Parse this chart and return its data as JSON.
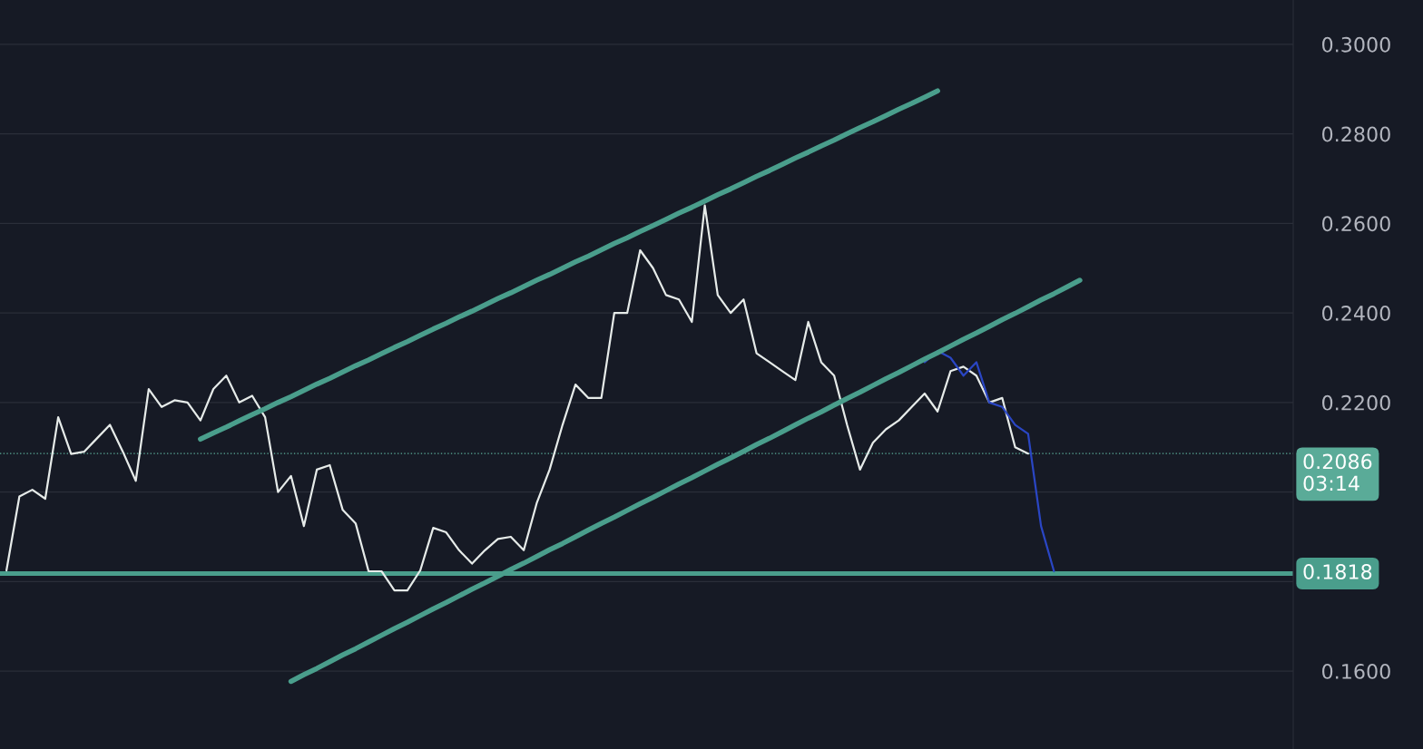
{
  "chart_data": {
    "type": "line",
    "ylim": [
      0.1426,
      0.3099
    ],
    "categories": [
      null,
      null,
      null,
      null,
      null,
      null,
      null,
      null,
      null,
      null,
      null,
      null,
      null,
      null,
      null,
      null,
      null,
      null,
      null,
      null,
      null,
      null,
      null,
      null,
      null,
      null,
      null,
      null,
      null,
      null,
      null,
      null,
      null,
      null,
      null,
      null,
      null,
      null,
      null,
      null,
      null,
      null,
      null,
      null,
      null,
      null,
      null,
      null,
      null,
      null,
      null,
      null,
      null,
      null,
      null,
      null,
      null,
      null,
      null,
      null,
      null,
      null,
      null,
      null,
      null,
      null,
      null,
      null,
      null,
      null,
      null,
      null,
      null,
      null,
      null,
      null,
      null,
      null,
      null,
      null,
      null,
      null,
      null,
      null,
      null,
      null,
      null,
      null,
      null,
      null,
      null,
      null,
      null,
      null,
      null,
      null,
      null,
      null,
      null,
      null
    ],
    "yticks": [
      {
        "value": 0.16,
        "label": "0.1600"
      },
      {
        "value": 0.18,
        "label": null
      },
      {
        "value": 0.2,
        "label": null
      },
      {
        "value": 0.22,
        "label": "0.2200"
      },
      {
        "value": 0.24,
        "label": "0.2400"
      },
      {
        "value": 0.26,
        "label": "0.2600"
      },
      {
        "value": 0.28,
        "label": "0.2800"
      },
      {
        "value": 0.3,
        "label": "0.3000"
      }
    ],
    "tick_labels": "y",
    "grid": "y",
    "marker": "none",
    "line_style": "solid",
    "series": [
      {
        "color": "#e6ebe9",
        "values": [
          0.1825,
          0.199,
          0.2005,
          0.1985,
          0.2167,
          0.2085,
          0.209,
          0.212,
          0.215,
          0.209,
          0.2025,
          0.223,
          0.219,
          0.2205,
          0.22,
          0.216,
          0.223,
          0.226,
          0.22,
          0.2215,
          0.2167,
          0.2,
          0.2036,
          0.1924,
          0.205,
          0.206,
          0.196,
          0.193,
          0.1823,
          0.1823,
          0.178,
          0.178,
          0.1825,
          0.192,
          0.191,
          0.187,
          0.184,
          0.187,
          0.1895,
          0.19,
          0.187,
          0.1975,
          0.205,
          0.215,
          0.224,
          0.221,
          0.221,
          0.24,
          0.24,
          0.254,
          0.25,
          0.244,
          0.243,
          0.238,
          0.264,
          0.244,
          0.24,
          0.243,
          0.231,
          0.229,
          0.227,
          0.225,
          0.238,
          0.229,
          0.226,
          0.215,
          0.205,
          0.211,
          0.214,
          0.216,
          0.219,
          0.222,
          0.218,
          0.227,
          0.228,
          0.226,
          0.22,
          0.221,
          0.21,
          0.2086,
          null,
          null,
          null,
          null,
          null,
          null,
          null,
          null,
          null,
          null,
          null,
          null,
          null,
          null,
          null,
          null,
          null,
          null,
          null,
          null
        ]
      },
      {
        "color": "#2a46c4",
        "values": [
          null,
          null,
          null,
          null,
          null,
          null,
          null,
          null,
          null,
          null,
          null,
          null,
          null,
          null,
          null,
          null,
          null,
          null,
          null,
          null,
          null,
          null,
          null,
          null,
          null,
          null,
          null,
          null,
          null,
          null,
          null,
          null,
          null,
          null,
          null,
          null,
          null,
          null,
          null,
          null,
          null,
          null,
          null,
          null,
          null,
          null,
          null,
          null,
          null,
          null,
          null,
          null,
          null,
          null,
          null,
          null,
          null,
          null,
          null,
          null,
          null,
          null,
          null,
          null,
          null,
          null,
          null,
          null,
          null,
          null,
          null,
          0.229,
          0.2315,
          0.23,
          0.226,
          0.229,
          0.22,
          0.219,
          0.215,
          0.213,
          0.1924,
          0.1823,
          null,
          null,
          null,
          null,
          null,
          null,
          null,
          null,
          null,
          null,
          null,
          null,
          null,
          null,
          null,
          null,
          null,
          null
        ]
      },
      {
        "color": "#4a9e8c",
        "values": [
          null,
          null,
          null,
          null,
          null,
          null,
          null,
          null,
          null,
          null,
          null,
          null,
          null,
          null,
          null,
          0.2118,
          0.2132,
          0.2145,
          0.2159,
          0.2173,
          0.2186,
          0.22,
          0.2213,
          0.2227,
          0.2241,
          0.2254,
          0.2268,
          0.2282,
          0.2295,
          0.2309,
          0.2323,
          0.2336,
          0.235,
          0.2364,
          0.2377,
          0.2391,
          0.2404,
          0.2418,
          0.2432,
          0.2445,
          0.2459,
          0.2473,
          0.2486,
          0.25,
          0.2514,
          0.2527,
          0.2541,
          0.2555,
          0.2568,
          0.2582,
          0.2595,
          0.2609,
          0.2623,
          0.2636,
          0.265,
          0.2664,
          0.2677,
          0.2691,
          0.2705,
          0.2718,
          0.2732,
          0.2746,
          0.2759,
          0.2773,
          0.2786,
          0.28,
          0.2814,
          0.2827,
          0.2841,
          0.2855,
          0.2868,
          0.2882,
          0.2896,
          null,
          null,
          null,
          null,
          null,
          null,
          null,
          null,
          null,
          null,
          null,
          null,
          null,
          null,
          null,
          null,
          null,
          null,
          null,
          null,
          null,
          null,
          null,
          null,
          null,
          null,
          null
        ]
      },
      {
        "color": "#4a9e8c",
        "values": [
          null,
          null,
          null,
          null,
          null,
          null,
          null,
          null,
          null,
          null,
          null,
          null,
          null,
          null,
          null,
          null,
          null,
          null,
          null,
          null,
          null,
          null,
          0.1577,
          0.1592,
          0.1606,
          0.1621,
          0.1636,
          0.165,
          0.1665,
          0.168,
          0.1695,
          0.1709,
          0.1724,
          0.1739,
          0.1753,
          0.1768,
          0.1783,
          0.1797,
          0.1812,
          0.1827,
          0.1841,
          0.1856,
          0.1871,
          0.1885,
          0.19,
          0.1915,
          0.193,
          0.1944,
          0.1959,
          0.1974,
          0.1988,
          0.2003,
          0.2018,
          0.2032,
          0.2047,
          0.2062,
          0.2076,
          0.2091,
          0.2106,
          0.212,
          0.2135,
          0.215,
          0.2165,
          0.2179,
          0.2194,
          0.2209,
          0.2223,
          0.2238,
          0.2253,
          0.2267,
          0.2282,
          0.2297,
          0.2311,
          0.2326,
          0.2341,
          0.2355,
          0.237,
          0.2385,
          0.2399,
          0.2414,
          0.2429,
          0.2443,
          0.2458,
          0.2473,
          null,
          null,
          null,
          null,
          null,
          null,
          null,
          null,
          null,
          null,
          null,
          null,
          null,
          null,
          null,
          null
        ]
      }
    ],
    "ref_lines": [
      {
        "axis": "y",
        "value": 0.1818,
        "label": "0.1818",
        "color": "#4a9e8c",
        "line_style": "solid"
      },
      {
        "axis": "y",
        "value": 0.2086,
        "label": "0.2086",
        "color": "#5aab98",
        "line_style": "dotted"
      }
    ],
    "annotations": [
      "03:14"
    ]
  }
}
